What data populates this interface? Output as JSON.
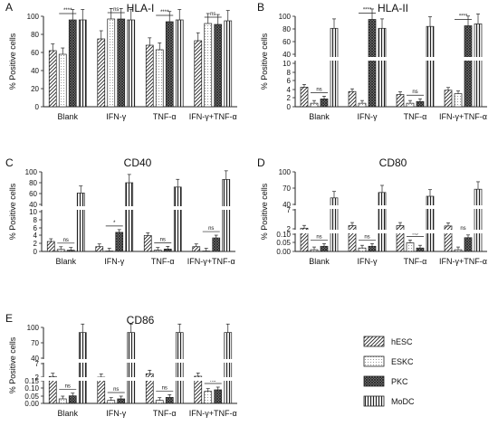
{
  "chart_data": [
    {
      "type": "bar",
      "panel": "A",
      "title": "HLA-I",
      "ylabel": "% Positive cells",
      "categories": [
        "Blank",
        "IFN-γ",
        "TNF-α",
        "IFN-γ+TNF-α"
      ],
      "yticks": [
        "0",
        "20",
        "40",
        "60",
        "80",
        "100"
      ],
      "ylim": [
        0,
        100
      ],
      "series": [
        {
          "name": "hESC",
          "values": [
            62,
            75,
            68,
            73
          ]
        },
        {
          "name": "ESKC",
          "values": [
            58,
            97,
            63,
            92
          ]
        },
        {
          "name": "PKC",
          "values": [
            96,
            97,
            94,
            91
          ]
        },
        {
          "name": "MoDC",
          "values": [
            96,
            96,
            96,
            95
          ]
        }
      ],
      "annotations": [
        {
          "category": "Blank",
          "text": "****"
        },
        {
          "category": "IFN-γ",
          "text": "ns"
        },
        {
          "category": "TNF-α",
          "text": "****"
        },
        {
          "category": "IFN-γ+TNF-α",
          "text": "ns"
        }
      ]
    },
    {
      "type": "bar",
      "panel": "B",
      "title": "HLA-II",
      "ylabel": "% Positive cells",
      "categories": [
        "Blank",
        "IFN-γ",
        "TNF-α",
        "IFN-γ+TNF-α"
      ],
      "yticks": [
        "0",
        "2",
        "4",
        "6",
        "8",
        "10",
        "40",
        "60",
        "80",
        "100"
      ],
      "series": [
        {
          "name": "hESC",
          "values": [
            4.5,
            3.5,
            2.8,
            3.8
          ]
        },
        {
          "name": "ESKC",
          "values": [
            0.8,
            0.8,
            0.8,
            3
          ]
        },
        {
          "name": "PKC",
          "values": [
            1.8,
            95,
            1.2,
            85
          ]
        },
        {
          "name": "MoDC",
          "values": [
            81,
            81,
            84,
            88
          ]
        }
      ],
      "annotations": [
        {
          "category": "Blank",
          "text": "ns"
        },
        {
          "category": "IFN-γ",
          "text": "****"
        },
        {
          "category": "TNF-α",
          "text": "ns"
        },
        {
          "category": "IFN-γ+TNF-α",
          "text": "****"
        }
      ]
    },
    {
      "type": "bar",
      "panel": "C",
      "title": "CD40",
      "ylabel": "% Positive cells",
      "categories": [
        "Blank",
        "IFN-γ",
        "TNF-α",
        "IFN-γ+TNF-α"
      ],
      "yticks": [
        "0",
        "2",
        "4",
        "6",
        "8",
        "10",
        "40",
        "60",
        "80",
        "100"
      ],
      "series": [
        {
          "name": "hESC",
          "values": [
            2.5,
            1.2,
            4,
            1.2
          ]
        },
        {
          "name": "ESKC",
          "values": [
            0.5,
            0.1,
            0.3,
            0.1
          ]
        },
        {
          "name": "PKC",
          "values": [
            0.3,
            4.8,
            0.6,
            3.4
          ]
        },
        {
          "name": "MoDC",
          "values": [
            61,
            80,
            72,
            86
          ]
        }
      ],
      "annotations": [
        {
          "category": "Blank",
          "text": "ns"
        },
        {
          "category": "IFN-γ",
          "text": "*"
        },
        {
          "category": "TNF-α",
          "text": "ns"
        },
        {
          "category": "IFN-γ+TNF-α",
          "text": "ns"
        }
      ]
    },
    {
      "type": "bar",
      "panel": "D",
      "title": "CD80",
      "ylabel": "% Positive cells",
      "categories": [
        "Blank",
        "IFN-γ",
        "TNF-α",
        "IFN-γ+TNF-α"
      ],
      "yticks": [
        "0.00",
        "0.05",
        "0.10",
        "2",
        "7",
        "40",
        "70",
        "100"
      ],
      "series": [
        {
          "name": "hESC",
          "values": [
            1.2,
            2,
            2,
            1.9
          ]
        },
        {
          "name": "ESKC",
          "values": [
            0.01,
            0.02,
            0.05,
            0.01
          ]
        },
        {
          "name": "PKC",
          "values": [
            0.03,
            0.03,
            0.02,
            0.08
          ]
        },
        {
          "name": "MoDC",
          "values": [
            52,
            62,
            55,
            68
          ]
        }
      ],
      "annotations": [
        {
          "category": "Blank",
          "text": "ns"
        },
        {
          "category": "IFN-γ",
          "text": "ns"
        },
        {
          "category": "TNF-α",
          "text": "ns"
        },
        {
          "category": "IFN-γ+TNF-α",
          "text": "ns"
        }
      ]
    },
    {
      "type": "bar",
      "panel": "E",
      "title": "CD86",
      "ylabel": "% Positive cells",
      "categories": [
        "Blank",
        "IFN-γ",
        "TNF-α",
        "IFN-γ+TNF-α"
      ],
      "yticks": [
        "0.00",
        "0.05",
        "0.10",
        "0.15",
        "2",
        "7",
        "40",
        "70",
        "100"
      ],
      "series": [
        {
          "name": "hESC",
          "values": [
            1.3,
            0.9,
            2.5,
            1.4
          ]
        },
        {
          "name": "ESKC",
          "values": [
            0.03,
            0.02,
            0.02,
            0.08
          ]
        },
        {
          "name": "PKC",
          "values": [
            0.05,
            0.03,
            0.04,
            0.09
          ]
        },
        {
          "name": "MoDC",
          "values": [
            90,
            90,
            90,
            90
          ]
        }
      ],
      "annotations": [
        {
          "category": "Blank",
          "text": "ns"
        },
        {
          "category": "IFN-γ",
          "text": "ns"
        },
        {
          "category": "TNF-α",
          "text": "ns"
        },
        {
          "category": "IFN-γ+TNF-α",
          "text": "ns"
        }
      ]
    }
  ],
  "legend": {
    "placement": "bottom-right",
    "items": [
      {
        "label": "hESC",
        "pattern": "diagonal-hatch"
      },
      {
        "label": "ESKC",
        "pattern": "light-dots"
      },
      {
        "label": "PKC",
        "pattern": "dense-crosshatch"
      },
      {
        "label": "MoDC",
        "pattern": "vertical-stripes"
      }
    ]
  },
  "panel_letters": [
    "A",
    "B",
    "C",
    "D",
    "E"
  ]
}
